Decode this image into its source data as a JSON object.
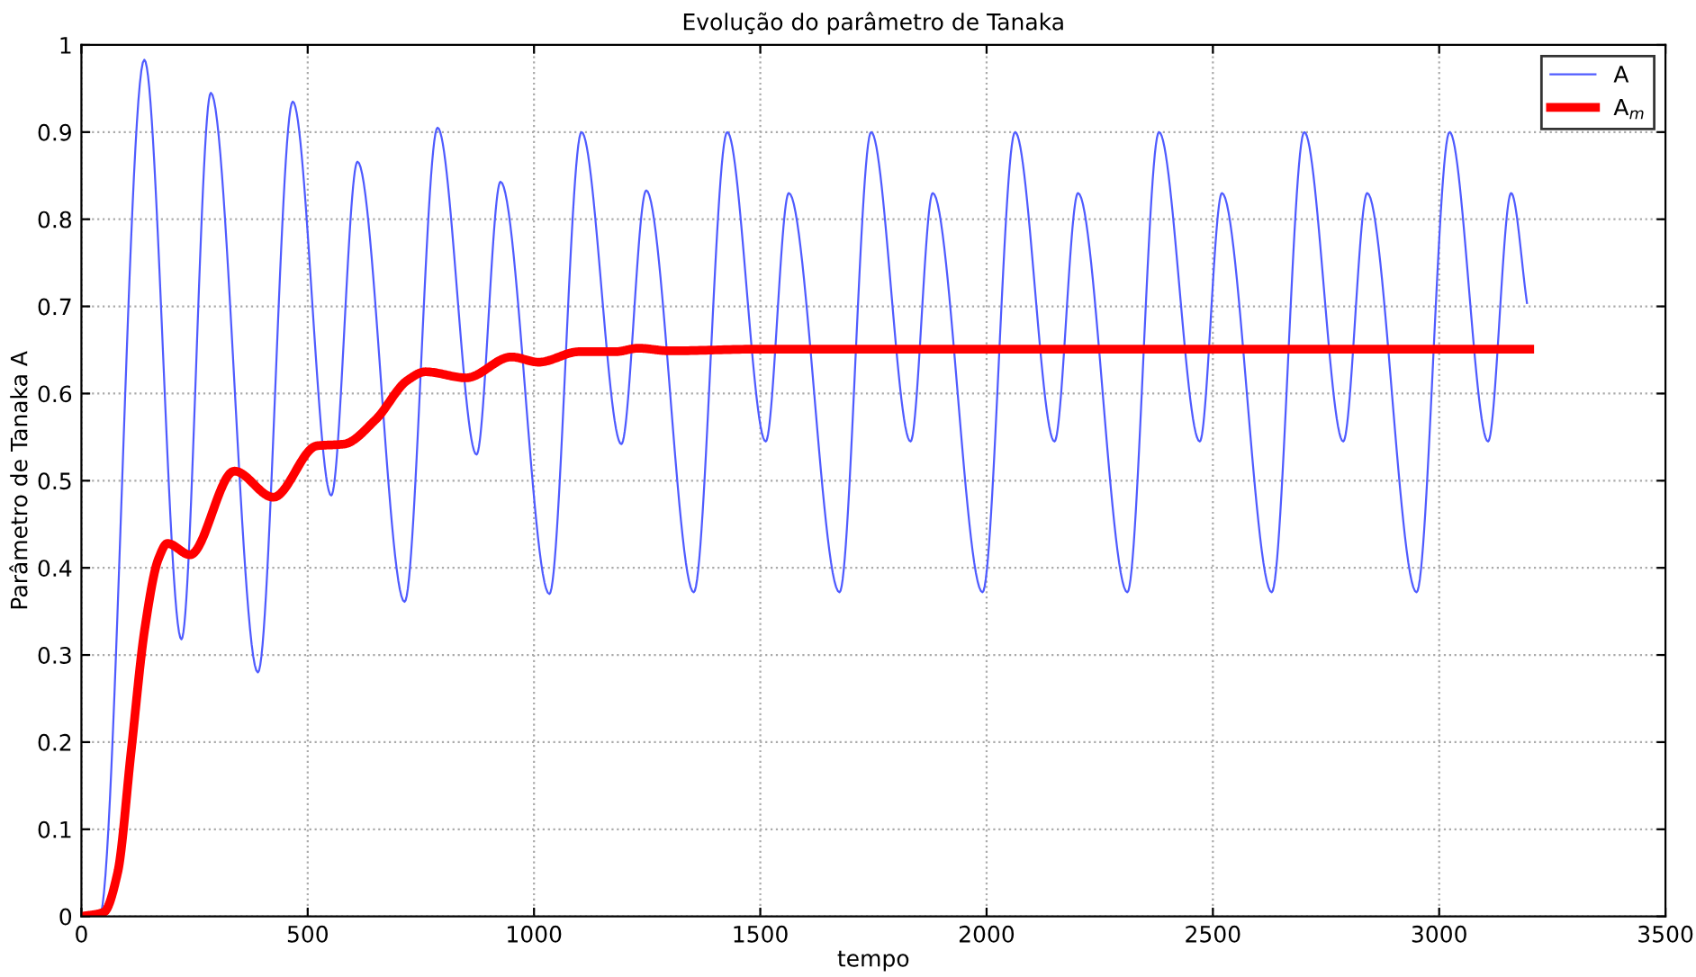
{
  "chart_data": {
    "type": "line",
    "title": "Evolução do parâmetro de Tanaka",
    "xlabel": "tempo",
    "ylabel": "Parâmetro de Tanaka A",
    "xlim": [
      0,
      3500
    ],
    "xticks": [
      0,
      500,
      1000,
      1500,
      2000,
      2500,
      3000,
      3500
    ],
    "ylim": [
      0,
      1
    ],
    "yticks": [
      0,
      0.1,
      0.2,
      0.3,
      0.4,
      0.5,
      0.6,
      0.7,
      0.8,
      0.9,
      1
    ],
    "grid": true,
    "legend": "top right",
    "line_style": "solid",
    "marker": "none",
    "series": [
      {
        "name": "A",
        "color": "#4f5bff",
        "x": [
          0,
          40,
          139,
          221,
          286,
          390,
          467,
          552,
          610,
          714,
          787,
          873,
          926,
          1034,
          1105,
          1193,
          1248,
          1353,
          1427,
          1512,
          1563,
          1675,
          1745,
          1832,
          1881,
          1991,
          2063,
          2150,
          2202,
          2311,
          2381,
          2471,
          2520,
          2630,
          2702,
          2788,
          2841,
          2950,
          3023,
          3108,
          3159,
          3194
        ],
        "values": [
          0,
          0,
          0.983,
          0.318,
          0.945,
          0.28,
          0.935,
          0.483,
          0.866,
          0.361,
          0.905,
          0.53,
          0.843,
          0.37,
          0.9,
          0.542,
          0.833,
          0.372,
          0.9,
          0.545,
          0.83,
          0.372,
          0.9,
          0.545,
          0.83,
          0.372,
          0.9,
          0.545,
          0.83,
          0.372,
          0.9,
          0.545,
          0.83,
          0.372,
          0.9,
          0.545,
          0.83,
          0.372,
          0.9,
          0.545,
          0.83,
          0.704
        ]
      },
      {
        "name": "A$_{m}$",
        "color": "#ff0000",
        "x": [
          0,
          50,
          80,
          110,
          140,
          170,
          190,
          240,
          338,
          424,
          520,
          580,
          650,
          720,
          760,
          850,
          950,
          1010,
          1100,
          1180,
          1230,
          1300,
          1500,
          3200
        ],
        "values": [
          0,
          0.005,
          0.05,
          0.19,
          0.33,
          0.41,
          0.428,
          0.415,
          0.511,
          0.481,
          0.54,
          0.542,
          0.57,
          0.615,
          0.625,
          0.618,
          0.642,
          0.636,
          0.648,
          0.648,
          0.652,
          0.649,
          0.651,
          0.651
        ]
      }
    ]
  }
}
